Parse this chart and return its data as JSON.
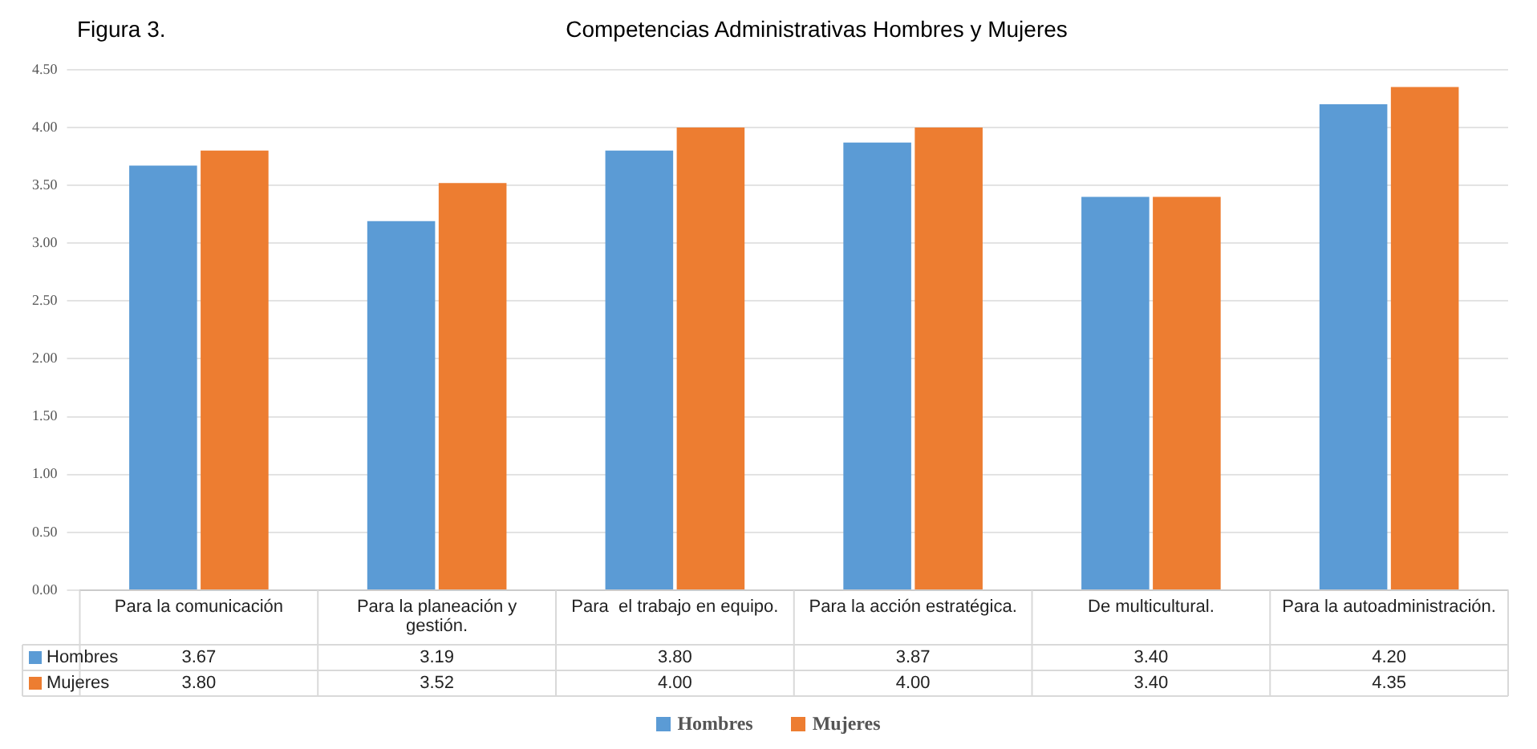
{
  "chart_data": {
    "type": "bar",
    "title": "Competencias Administrativas Hombres y Mujeres",
    "annotations": [
      "Figura 3."
    ],
    "categories": [
      "Para la comunicación",
      "Para la planeación y gestión.",
      "Para  el trabajo en equipo.",
      "Para la acción estratégica.",
      "De multicultural.",
      "Para la autoadministración."
    ],
    "series": [
      {
        "name": "Hombres",
        "color": "#5b9bd5",
        "values": [
          3.67,
          3.19,
          3.8,
          3.87,
          3.4,
          4.2
        ],
        "value_labels": [
          "3.67",
          "3.19",
          "3.80",
          "3.87",
          "3.40",
          "4.20"
        ]
      },
      {
        "name": "Mujeres",
        "color": "#ed7d31",
        "values": [
          3.8,
          3.52,
          4.0,
          4.0,
          3.4,
          4.35
        ],
        "value_labels": [
          "3.80",
          "3.52",
          "4.00",
          "4.00",
          "3.40",
          "4.35"
        ]
      }
    ],
    "ylim": [
      0,
      4.5
    ],
    "yticks": [
      {
        "value": 0,
        "label": "0.00"
      },
      {
        "value": 0.5,
        "label": "0.50"
      },
      {
        "value": 1,
        "label": "1.00"
      },
      {
        "value": 1.5,
        "label": "1.50"
      },
      {
        "value": 2,
        "label": "2.00"
      },
      {
        "value": 2.5,
        "label": "2.50"
      },
      {
        "value": 3,
        "label": "3.00"
      },
      {
        "value": 3.5,
        "label": "3.50"
      },
      {
        "value": 4,
        "label": "4.00"
      },
      {
        "value": 4.5,
        "label": "4.50"
      }
    ],
    "grid": "y",
    "legend": "bottom"
  }
}
